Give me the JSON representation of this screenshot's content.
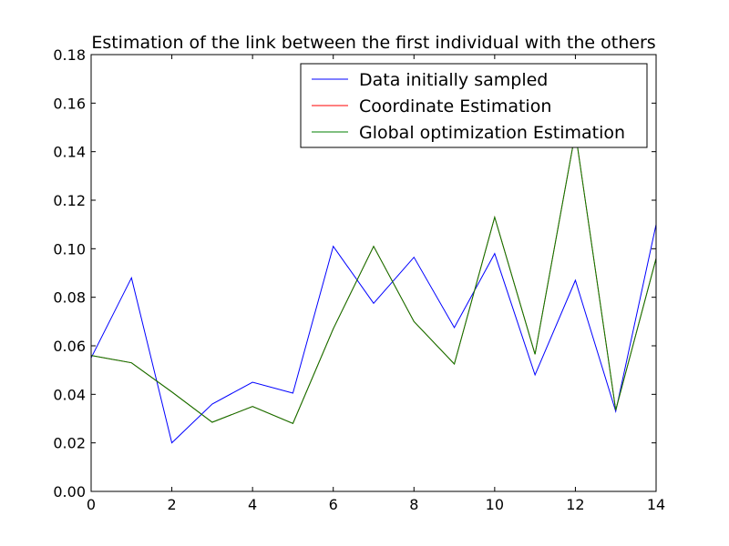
{
  "chart_data": {
    "type": "line",
    "title": "Estimation of the link between the first individual with the others",
    "xlabel": "",
    "ylabel": "",
    "xlim": [
      0,
      14
    ],
    "ylim": [
      0,
      0.18
    ],
    "xticks": [
      "0",
      "2",
      "4",
      "6",
      "8",
      "10",
      "12",
      "14"
    ],
    "yticks": [
      "0.00",
      "0.02",
      "0.04",
      "0.06",
      "0.08",
      "0.10",
      "0.12",
      "0.14",
      "0.16",
      "0.18"
    ],
    "grid": false,
    "legend_position": "top-right",
    "x": [
      0,
      1,
      2,
      3,
      4,
      5,
      6,
      7,
      8,
      9,
      10,
      11,
      12,
      13,
      14
    ],
    "series": [
      {
        "name": "Data initially sampled",
        "color": "#0000ff",
        "values": [
          0.055,
          0.088,
          0.02,
          0.036,
          0.045,
          0.0405,
          0.101,
          0.0775,
          0.0965,
          0.0675,
          0.098,
          0.048,
          0.087,
          0.033,
          0.11
        ]
      },
      {
        "name": "Coordinate Estimation",
        "color": "#ff0000",
        "values": [
          0.056,
          0.053,
          0.041,
          0.0285,
          0.035,
          0.028,
          0.067,
          0.101,
          0.07,
          0.0525,
          0.113,
          0.0565,
          0.148,
          0.0335,
          0.096
        ]
      },
      {
        "name": "Global optimization Estimation",
        "color": "#007f00",
        "values": [
          0.056,
          0.053,
          0.041,
          0.0285,
          0.035,
          0.028,
          0.067,
          0.101,
          0.07,
          0.0525,
          0.113,
          0.0565,
          0.148,
          0.0335,
          0.096
        ]
      }
    ]
  }
}
